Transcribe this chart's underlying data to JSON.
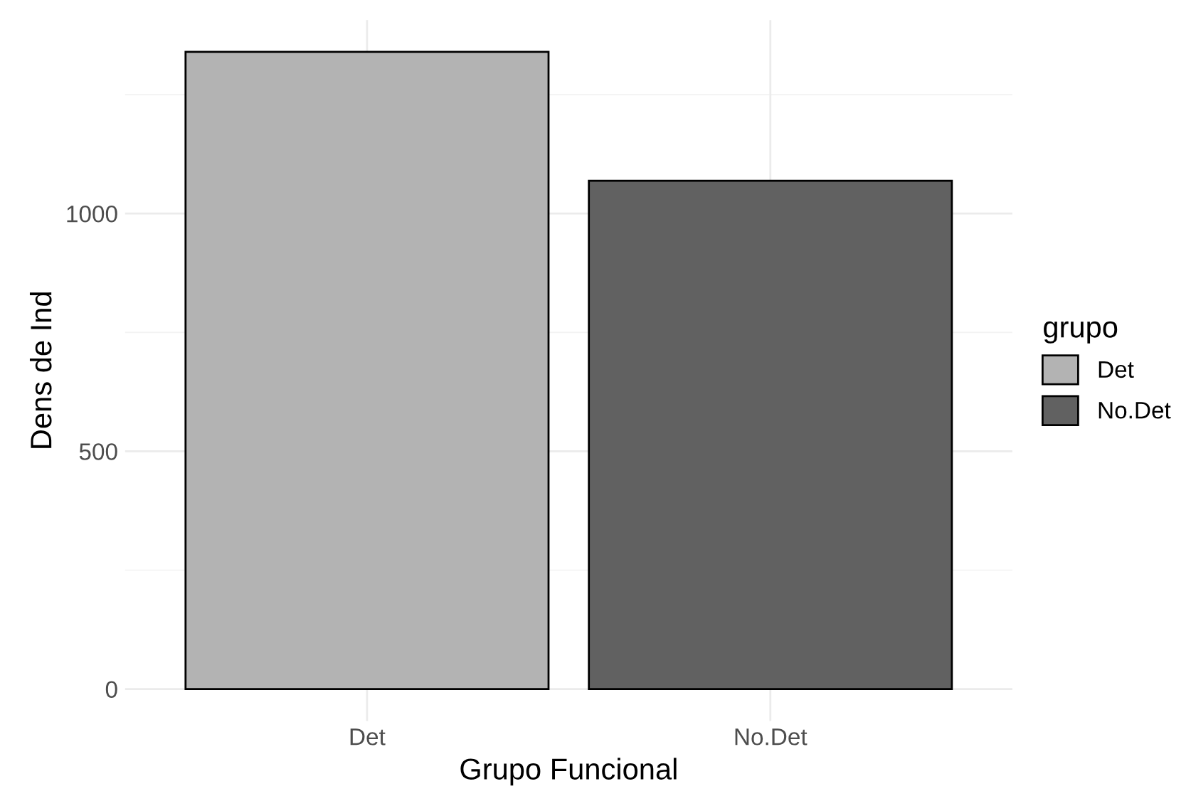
{
  "chart_data": {
    "type": "bar",
    "xlabel": "Grupo Funcional",
    "ylabel": "Dens de Ind",
    "legend_title": "grupo",
    "categories": [
      "Det",
      "No.Det"
    ],
    "series": [
      {
        "name": "Det",
        "color": "#b3b3b3",
        "values": [
          1340,
          null
        ]
      },
      {
        "name": "No.Det",
        "color": "#616161",
        "values": [
          null,
          1069
        ]
      }
    ],
    "ylim": [
      -67,
      1407
    ],
    "yticks": [
      0,
      500,
      1000
    ],
    "grid": true,
    "legend": "right"
  }
}
